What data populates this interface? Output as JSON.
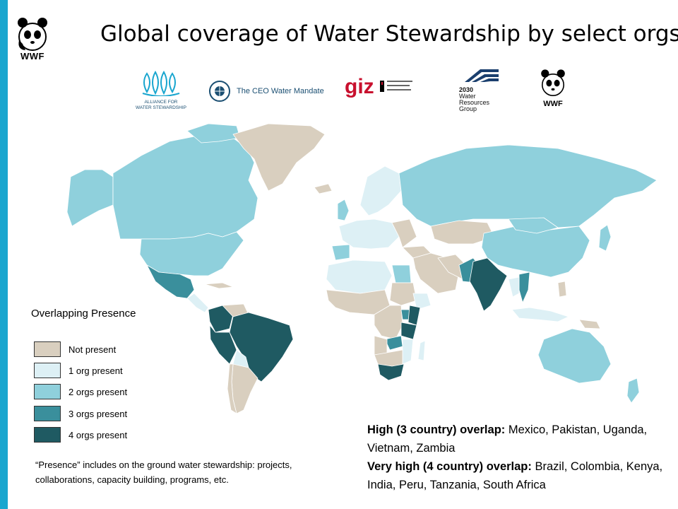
{
  "title": "Global coverage of Water Stewardship by select orgs",
  "brand": {
    "logo_text": "WWF"
  },
  "partners": [
    {
      "id": "aws",
      "lines": [
        "ALLIANCE FOR",
        "WATER STEWARDSHIP"
      ],
      "icon": "water-drops-icon",
      "color": "#1aa6cf"
    },
    {
      "id": "ceo",
      "text": "The CEO Water Mandate",
      "icon": "un-global-compact-icon"
    },
    {
      "id": "giz",
      "text": "giz",
      "icon": "german-eagle-icon",
      "color": "#c8102e"
    },
    {
      "id": "wrg",
      "lines": [
        "2030",
        "Water",
        "Resources",
        "Group"
      ],
      "icon": "stripes-icon",
      "color": "#1b3f6e"
    },
    {
      "id": "wwf",
      "text": "WWF",
      "icon": "panda-icon"
    }
  ],
  "legend": {
    "title": "Overlapping Presence",
    "items": [
      {
        "label": "Not present",
        "color": "#d9cfbf"
      },
      {
        "label": "1 org present",
        "color": "#ddf0f5"
      },
      {
        "label": "2 orgs present",
        "color": "#8fd0dc"
      },
      {
        "label": "3 orgs present",
        "color": "#3a8f9c"
      },
      {
        "label": "4 orgs present",
        "color": "#1f5a62"
      }
    ]
  },
  "presence_note": "“Presence”  includes on the ground water stewardship: projects, collaborations, capacity building, programs, etc.",
  "overlap": {
    "high_label": "High (3 country) overlap:",
    "high_countries": "Mexico, Pakistan, Uganda, Vietnam, Zambia",
    "very_high_label": "Very high (4 country) overlap:",
    "very_high_countries": "Brazil, Colombia, Kenya, India, Peru, Tanzania, South Africa"
  }
}
